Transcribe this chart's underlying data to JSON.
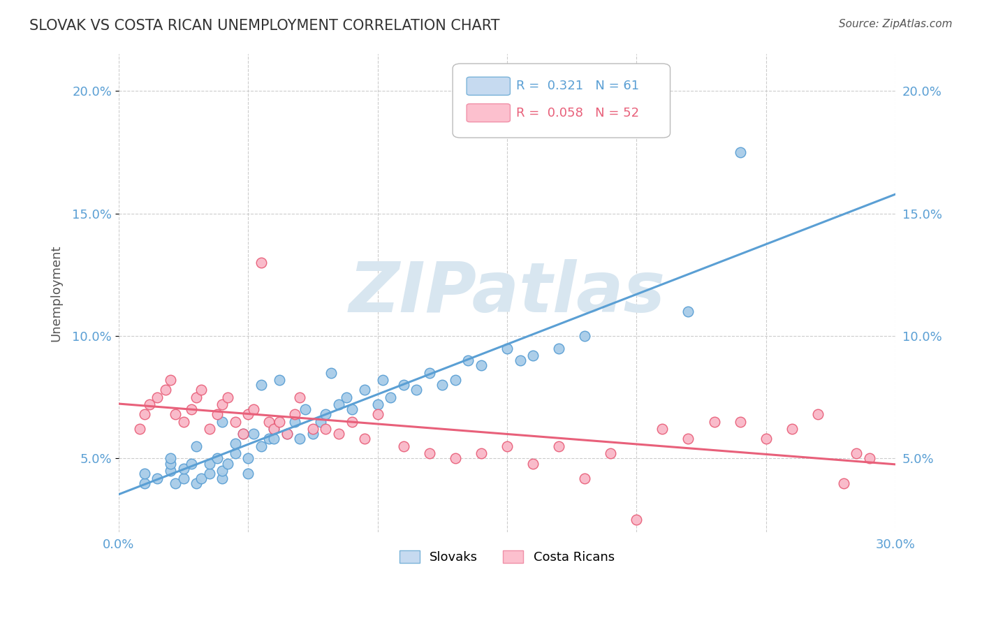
{
  "title": "SLOVAK VS COSTA RICAN UNEMPLOYMENT CORRELATION CHART",
  "source": "Source: ZipAtlas.com",
  "ylabel": "Unemployment",
  "xlim": [
    0.0,
    0.3
  ],
  "ylim": [
    0.02,
    0.215
  ],
  "xticks": [
    0.0,
    0.05,
    0.1,
    0.15,
    0.2,
    0.25,
    0.3
  ],
  "xticklabels": [
    "0.0%",
    "",
    "",
    "",
    "",
    "",
    "30.0%"
  ],
  "yticks": [
    0.05,
    0.1,
    0.15,
    0.2
  ],
  "yticklabels": [
    "5.0%",
    "10.0%",
    "15.0%",
    "20.0%"
  ],
  "slovak_R": 0.321,
  "slovak_N": 61,
  "costarican_R": 0.058,
  "costarican_N": 52,
  "blue_color": "#a8cce8",
  "blue_edge": "#5a9fd4",
  "pink_color": "#f9b8c8",
  "pink_edge": "#e8607a",
  "blue_line_color": "#5a9fd4",
  "pink_line_color": "#e8607a",
  "watermark": "ZIPatlas",
  "watermark_color": "#d8e6f0",
  "title_color": "#333333",
  "label_color": "#555555",
  "tick_color": "#5a9fd4",
  "grid_color": "#cccccc",
  "background_color": "#ffffff",
  "slovak_x": [
    0.01,
    0.01,
    0.015,
    0.02,
    0.02,
    0.02,
    0.022,
    0.025,
    0.025,
    0.028,
    0.03,
    0.03,
    0.032,
    0.035,
    0.035,
    0.038,
    0.04,
    0.04,
    0.04,
    0.042,
    0.045,
    0.045,
    0.048,
    0.05,
    0.05,
    0.052,
    0.055,
    0.055,
    0.058,
    0.06,
    0.06,
    0.062,
    0.065,
    0.068,
    0.07,
    0.072,
    0.075,
    0.078,
    0.08,
    0.082,
    0.085,
    0.088,
    0.09,
    0.095,
    0.1,
    0.102,
    0.105,
    0.11,
    0.115,
    0.12,
    0.125,
    0.13,
    0.135,
    0.14,
    0.15,
    0.155,
    0.16,
    0.17,
    0.18,
    0.22,
    0.24
  ],
  "slovak_y": [
    0.04,
    0.044,
    0.042,
    0.045,
    0.048,
    0.05,
    0.04,
    0.042,
    0.046,
    0.048,
    0.04,
    0.055,
    0.042,
    0.044,
    0.048,
    0.05,
    0.042,
    0.045,
    0.065,
    0.048,
    0.052,
    0.056,
    0.06,
    0.044,
    0.05,
    0.06,
    0.055,
    0.08,
    0.058,
    0.058,
    0.062,
    0.082,
    0.06,
    0.065,
    0.058,
    0.07,
    0.06,
    0.065,
    0.068,
    0.085,
    0.072,
    0.075,
    0.07,
    0.078,
    0.072,
    0.082,
    0.075,
    0.08,
    0.078,
    0.085,
    0.08,
    0.082,
    0.09,
    0.088,
    0.095,
    0.09,
    0.092,
    0.095,
    0.1,
    0.11,
    0.175
  ],
  "costarican_x": [
    0.008,
    0.01,
    0.012,
    0.015,
    0.018,
    0.02,
    0.022,
    0.025,
    0.028,
    0.03,
    0.032,
    0.035,
    0.038,
    0.04,
    0.042,
    0.045,
    0.048,
    0.05,
    0.052,
    0.055,
    0.058,
    0.06,
    0.062,
    0.065,
    0.068,
    0.07,
    0.075,
    0.08,
    0.085,
    0.09,
    0.095,
    0.1,
    0.11,
    0.12,
    0.13,
    0.14,
    0.15,
    0.16,
    0.17,
    0.18,
    0.19,
    0.2,
    0.21,
    0.22,
    0.23,
    0.24,
    0.25,
    0.26,
    0.27,
    0.28,
    0.285,
    0.29
  ],
  "costarican_y": [
    0.062,
    0.068,
    0.072,
    0.075,
    0.078,
    0.082,
    0.068,
    0.065,
    0.07,
    0.075,
    0.078,
    0.062,
    0.068,
    0.072,
    0.075,
    0.065,
    0.06,
    0.068,
    0.07,
    0.13,
    0.065,
    0.062,
    0.065,
    0.06,
    0.068,
    0.075,
    0.062,
    0.062,
    0.06,
    0.065,
    0.058,
    0.068,
    0.055,
    0.052,
    0.05,
    0.052,
    0.055,
    0.048,
    0.055,
    0.042,
    0.052,
    0.025,
    0.062,
    0.058,
    0.065,
    0.065,
    0.058,
    0.062,
    0.068,
    0.04,
    0.052,
    0.05
  ],
  "legend_box_color_blue": "#c6daf0",
  "legend_box_color_pink": "#fcc0ce",
  "legend_border_blue": "#7ab3d9",
  "legend_border_pink": "#f090a8"
}
